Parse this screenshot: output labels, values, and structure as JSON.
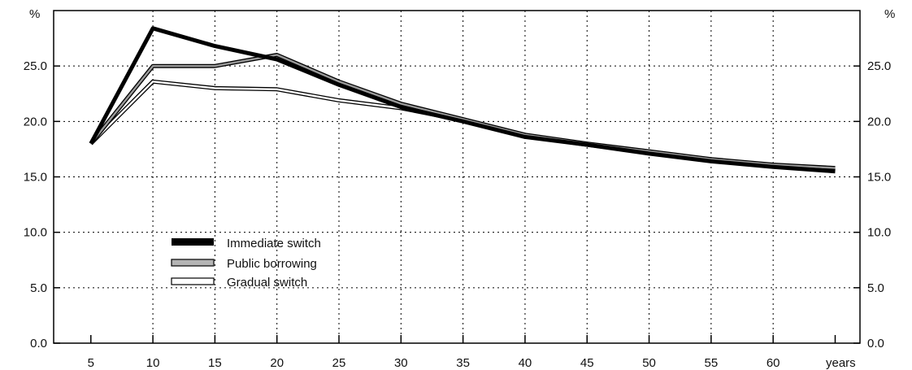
{
  "chart_data": {
    "type": "line",
    "y_unit_left": "%",
    "y_unit_right": "%",
    "x_unit": "years",
    "x_ticks": [
      "5",
      "10",
      "15",
      "20",
      "25",
      "30",
      "35",
      "40",
      "45",
      "50",
      "55",
      "60"
    ],
    "y_ticks": [
      "0.0",
      "5.0",
      "10.0",
      "15.0",
      "20.0",
      "25.0"
    ],
    "xlim": [
      2,
      67
    ],
    "ylim": [
      0,
      30
    ],
    "grid": true,
    "legend_position": "center-left",
    "x": [
      5,
      10,
      15,
      20,
      25,
      30,
      35,
      40,
      45,
      50,
      55,
      60,
      65
    ],
    "series": [
      {
        "name": "Immediate switch",
        "style": "solid-thick",
        "color": "#000000",
        "values": [
          18.0,
          28.4,
          26.8,
          25.6,
          23.3,
          21.3,
          20.0,
          18.6,
          17.9,
          17.1,
          16.4,
          15.9,
          15.5
        ]
      },
      {
        "name": "Public borrowing",
        "style": "double-outline-grey",
        "color": "#9a9a9a",
        "values": [
          18.0,
          25.0,
          25.0,
          26.0,
          23.6,
          21.6,
          20.2,
          18.8,
          18.0,
          17.3,
          16.6,
          16.1,
          15.8
        ]
      },
      {
        "name": "Gradual switch",
        "style": "double-outline-white",
        "color": "#ffffff",
        "values": [
          18.0,
          23.6,
          23.0,
          22.9,
          21.9,
          21.2,
          20.1,
          18.7,
          17.9,
          17.2,
          16.5,
          16.0,
          15.6
        ]
      }
    ]
  }
}
